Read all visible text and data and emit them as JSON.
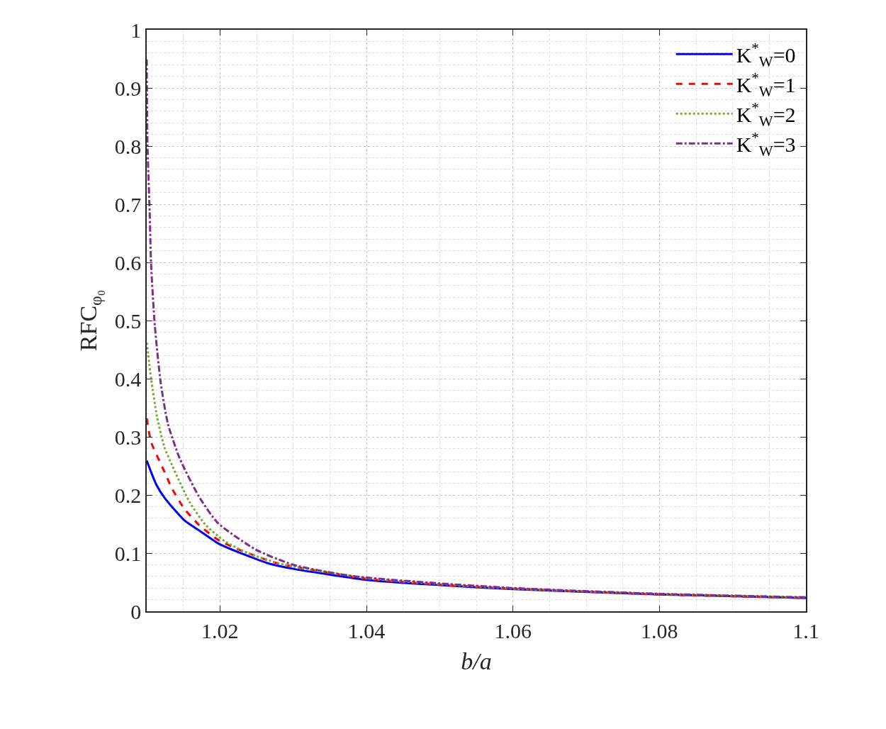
{
  "chart_data": {
    "type": "line",
    "xlabel": "b/a",
    "ylabel": "RFC$_{φ₀}$",
    "xlim": [
      1.01,
      1.1
    ],
    "xticks": [
      1.02,
      1.04,
      1.06,
      1.08,
      1.1
    ],
    "ylim": [
      0,
      1
    ],
    "yticks": [
      0,
      0.1,
      0.2,
      0.3,
      0.4,
      0.5,
      0.6,
      0.7,
      0.8,
      0.9,
      1
    ],
    "grid": true,
    "legend": "top right",
    "series": [
      {
        "name": "K$^{*}$$_{W}$=0",
        "color": "#0000ff",
        "line_style": "solid",
        "x": [
          1.01,
          1.0113,
          1.0125,
          1.0151,
          1.0174,
          1.02,
          1.0267,
          1.03,
          1.04,
          1.05,
          1.06,
          1.08,
          1.1
        ],
        "values": [
          0.259,
          0.218,
          0.194,
          0.157,
          0.137,
          0.115,
          0.082,
          0.073,
          0.054,
          0.045,
          0.038,
          0.029,
          0.023
        ]
      },
      {
        "name": "K$^{*}$$_{W}$=1",
        "color": "#ff0000",
        "line_style": "dashed",
        "x": [
          1.01,
          1.0106,
          1.0122,
          1.0135,
          1.0151,
          1.0171,
          1.0196,
          1.0222,
          1.0274,
          1.03,
          1.04,
          1.05,
          1.06,
          1.08,
          1.1
        ],
        "values": [
          0.332,
          0.291,
          0.246,
          0.21,
          0.177,
          0.149,
          0.124,
          0.108,
          0.084,
          0.077,
          0.056,
          0.046,
          0.039,
          0.029,
          0.023
        ]
      },
      {
        "name": "K$^{*}$$_{W}$=2",
        "color": "#77ac30",
        "line_style": "dotted",
        "x": [
          1.01,
          1.0106,
          1.0114,
          1.0124,
          1.0135,
          1.0158,
          1.018,
          1.0206,
          1.0238,
          1.0287,
          1.03,
          1.04,
          1.05,
          1.06,
          1.08,
          1.1
        ],
        "values": [
          0.462,
          0.4,
          0.335,
          0.283,
          0.25,
          0.189,
          0.149,
          0.121,
          0.1,
          0.08,
          0.077,
          0.057,
          0.047,
          0.039,
          0.03,
          0.024
        ]
      },
      {
        "name": "K$^{*}$$_{W}$=3",
        "color": "#7e2f8e",
        "line_style": "dashdot",
        "x": [
          1.01,
          1.0101,
          1.0104,
          1.0106,
          1.0111,
          1.0119,
          1.0129,
          1.0145,
          1.0171,
          1.0197,
          1.0249,
          1.03,
          1.0378,
          1.05,
          1.06,
          1.08,
          1.1
        ],
        "values": [
          0.949,
          0.805,
          0.688,
          0.596,
          0.492,
          0.394,
          0.322,
          0.263,
          0.198,
          0.152,
          0.106,
          0.08,
          0.061,
          0.048,
          0.04,
          0.03,
          0.024
        ]
      }
    ]
  }
}
